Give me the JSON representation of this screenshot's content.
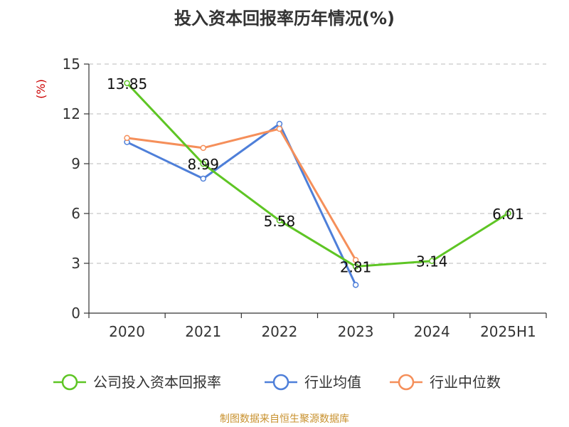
{
  "title": "投入资本回报率历年情况(%)",
  "source": "制图数据来自恒生聚源数据库",
  "colors": {
    "grid": "#c8c8c8",
    "axis": "#333333",
    "unit": "#cc0000",
    "source": "#c8912e"
  },
  "chart_data": {
    "type": "line",
    "title": "投入资本回报率历年情况(%)",
    "ylabel": "(%)",
    "xlabel": "",
    "ylim": [
      0,
      15
    ],
    "yticks": [
      0,
      3,
      6,
      9,
      12,
      15
    ],
    "grid": "horizontal dashed",
    "legend_position": "bottom",
    "categories": [
      "2020",
      "2021",
      "2022",
      "2023",
      "2024",
      "2025H1"
    ],
    "series": [
      {
        "name": "公司投入资本回报率",
        "color": "#5ec524",
        "values": [
          13.85,
          8.99,
          5.58,
          2.81,
          3.14,
          6.01
        ],
        "labels": [
          "13.85",
          "8.99",
          "5.58",
          "2.81",
          "3.14",
          "6.01"
        ]
      },
      {
        "name": "行业均值",
        "color": "#4e7fd9",
        "values": [
          10.3,
          8.1,
          11.4,
          1.7,
          null,
          null
        ]
      },
      {
        "name": "行业中位数",
        "color": "#f58f5a",
        "values": [
          10.55,
          9.95,
          11.1,
          3.2,
          null,
          null
        ]
      }
    ]
  }
}
